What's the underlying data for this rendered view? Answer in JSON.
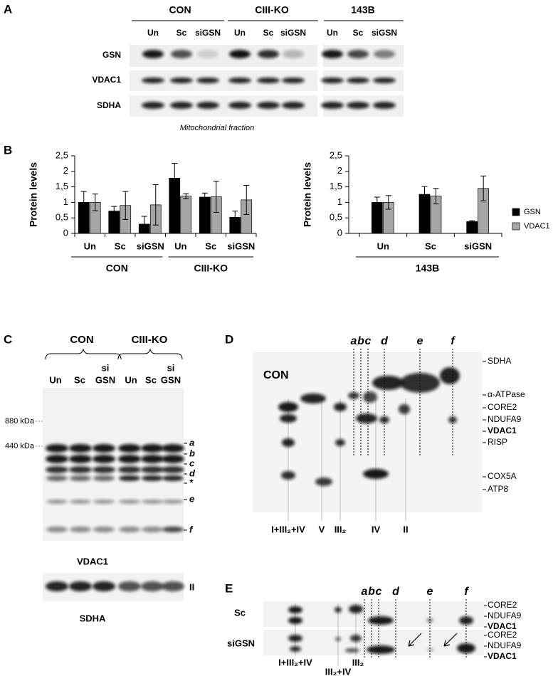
{
  "panel_labels": [
    "A",
    "B",
    "C",
    "D",
    "E"
  ],
  "panel_a": {
    "groups": [
      "CON",
      "CIII-KO",
      "143B"
    ],
    "lanes": [
      "Un",
      "Sc",
      "siGSN",
      "Un",
      "Sc",
      "siGSN",
      "Un",
      "Sc",
      "siGSN"
    ],
    "rows": [
      "GSN",
      "VDAC1",
      "SDHA"
    ],
    "caption": "Mitochondrial fraction"
  },
  "chart_data": [
    {
      "type": "bar",
      "ylabel": "Protein levels",
      "categories": [
        "Un",
        "Sc",
        "siGSN",
        "Un",
        "Sc",
        "siGSN"
      ],
      "groups": [
        "CON",
        "CIII-KO"
      ],
      "series": [
        {
          "name": "GSN",
          "color": "#000000",
          "values": [
            1,
            0.72,
            0.3,
            1.78,
            1.17,
            0.52
          ],
          "errors": [
            0.35,
            0.15,
            0.25,
            0.48,
            0.13,
            0.2
          ]
        },
        {
          "name": "VDAC1",
          "color": "#a6a6a6",
          "values": [
            1,
            0.9,
            0.92,
            1.2,
            1.18,
            1.08
          ],
          "errors": [
            0.27,
            0.45,
            0.65,
            0.08,
            0.5,
            0.47
          ]
        }
      ],
      "ylim": [
        0,
        2.5
      ],
      "yticks": [
        0,
        {
          "value": 0.5,
          "label": "0,5"
        },
        1,
        {
          "value": 1.5,
          "label": "1,5"
        },
        2,
        {
          "value": 2.5,
          "label": "2,5"
        }
      ]
    },
    {
      "type": "bar",
      "ylabel": "Protein levels",
      "categories": [
        "Un",
        "Sc",
        "siGSN"
      ],
      "groups": [
        "143B"
      ],
      "series": [
        {
          "name": "GSN",
          "color": "#000000",
          "values": [
            1,
            1.26,
            0.38
          ],
          "errors": [
            0.17,
            0.25,
            0.03
          ]
        },
        {
          "name": "VDAC1",
          "color": "#a6a6a6",
          "values": [
            1,
            1.2,
            1.45
          ],
          "errors": [
            0.22,
            0.25,
            0.4
          ]
        }
      ],
      "ylim": [
        0,
        2.5
      ],
      "yticks": [
        0,
        {
          "value": 0.5,
          "label": "0,5"
        },
        1,
        {
          "value": 1.5,
          "label": "1,5"
        },
        2,
        {
          "value": 2.5,
          "label": "2,5"
        }
      ],
      "legend": "right"
    }
  ],
  "panel_c": {
    "groups": [
      "CON",
      "CIII-KO"
    ],
    "si": [
      "si",
      "si"
    ],
    "lanes": [
      "Un",
      "Sc",
      "GSN",
      "Un",
      "Sc",
      "GSN"
    ],
    "markers": [
      "880 kDa",
      "440 kDa"
    ],
    "bands": [
      "a",
      "b",
      "c",
      "d",
      "*",
      "e",
      "f"
    ],
    "blot_label": "VDAC1",
    "sdha_band": "II",
    "sdha_label": "SDHA"
  },
  "panel_d": {
    "sample": "CON",
    "spots": [
      "a",
      "b",
      "c",
      "d",
      "e",
      "f"
    ],
    "proteins": [
      "SDHA",
      "α-ATPase",
      "CORE2",
      "NDUFA9",
      "VDAC1",
      "RISP",
      "COX5A",
      "ATP8"
    ],
    "complexes": [
      "I+III₂+IV",
      "V",
      "III₂",
      "IV",
      "II"
    ]
  },
  "panel_e": {
    "spots": [
      "a",
      "b",
      "c",
      "d",
      "e",
      "f"
    ],
    "rows": [
      "Sc",
      "siGSN"
    ],
    "proteins": [
      "CORE2",
      "NDUFA9",
      "VDAC1"
    ],
    "complexes": [
      "I+III₂+IV",
      "III₂+IV",
      "III₂"
    ]
  }
}
